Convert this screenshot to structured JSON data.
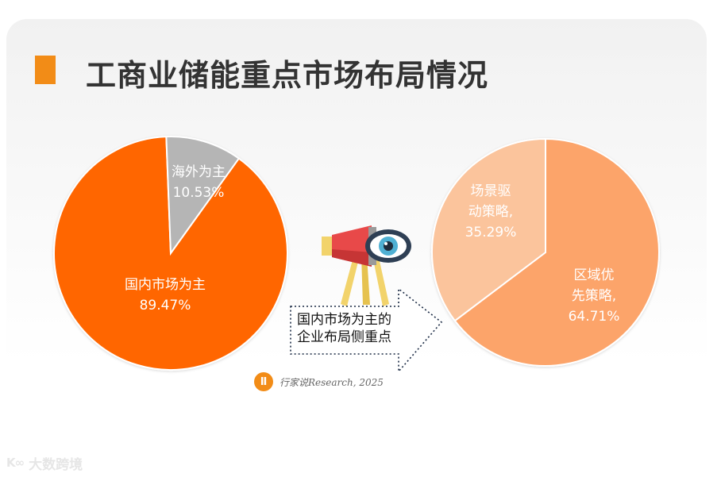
{
  "title": "工商业储能重点市场布局情况",
  "colors": {
    "accent": "#f28c17",
    "domestic": "#ff6600",
    "overseas": "#b5b5b5",
    "regional": "#fca46a",
    "scenario": "#fbc49c"
  },
  "chart_data": [
    {
      "type": "pie",
      "slices": [
        {
          "label": "国内市场为主",
          "value": 89.47,
          "value_label": "89.47%",
          "color": "#ff6600"
        },
        {
          "label": "海外为主",
          "value": 10.53,
          "value_label": "10.53%",
          "color": "#b5b5b5"
        }
      ]
    },
    {
      "type": "pie",
      "slices": [
        {
          "label": "区域优先策略,",
          "label_lines": [
            "区域优",
            "先策略,"
          ],
          "value": 64.71,
          "value_label": "64.71%",
          "color": "#fca46a"
        },
        {
          "label": "场景驱动策略,",
          "label_lines": [
            "场景驱",
            "动策略,"
          ],
          "value": 35.29,
          "value_label": "35.29%",
          "color": "#fbc49c"
        }
      ]
    }
  ],
  "callout": {
    "line1": "国内市场为主的",
    "line2": "企业布局侧重点",
    "icon": "telescope-eye-icon"
  },
  "credit": {
    "logo_text": "Ⅱ",
    "text": "行家说Research, 2025"
  },
  "watermark": {
    "logo_text": "K∞",
    "text": "大数跨境"
  }
}
